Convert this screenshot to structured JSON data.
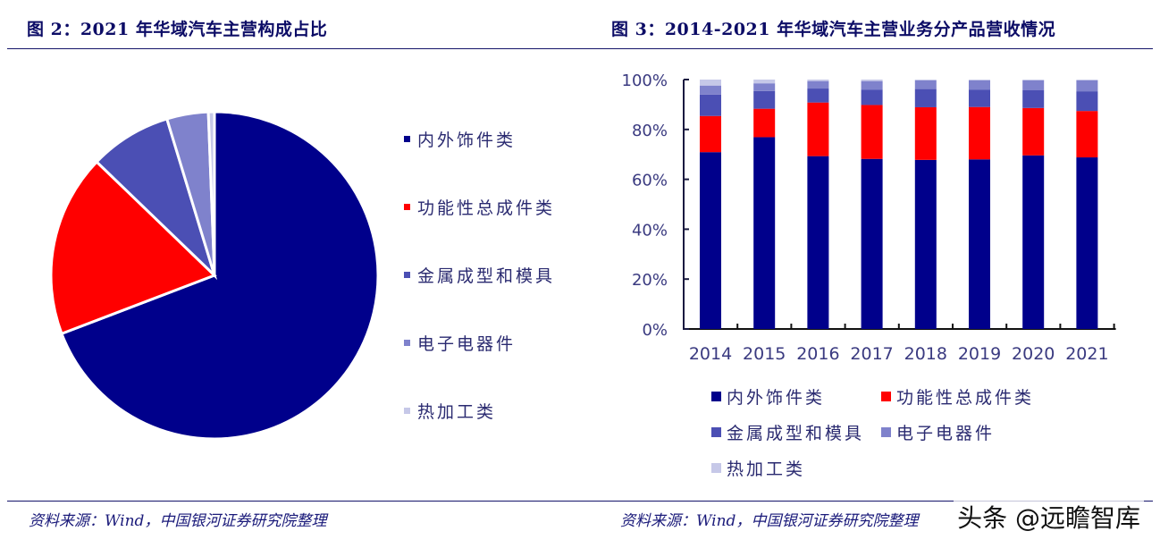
{
  "left_figure": {
    "title": "图 2：2021 年华域汽车主营构成占比",
    "source": "资料来源：Wind，中国银河证券研究院整理"
  },
  "right_figure": {
    "title": "图 3：2014-2021 年华域汽车主营业务分产品营收情况",
    "source": "资料来源：Wind，中国银河证券研究院整理"
  },
  "watermark": "头条 @远瞻智库",
  "colors": {
    "interior_exterior": "#00008b",
    "functional_assembly": "#ff0000",
    "metal_forming": "#4b4fb4",
    "electronics": "#7f82cc",
    "hot_processing": "#c6c8e8",
    "title": "#0c0c66",
    "axis_text": "#3a3a80"
  },
  "chart_data": [
    {
      "type": "pie",
      "title": "2021 年华域汽车主营构成占比",
      "labels": [
        "内外饰件类",
        "功能性总成件类",
        "金属成型和模具",
        "电子电器件",
        "热加工类"
      ],
      "values": [
        69.2,
        18.0,
        8.1,
        4.1,
        0.6
      ],
      "unit": "%",
      "legend_position": "right",
      "start_angle": "12 o'clock, clockwise"
    },
    {
      "type": "bar",
      "stacked": true,
      "percent": true,
      "title": "2014-2021 年华域汽车主营业务分产品营收情况",
      "categories": [
        "2014",
        "2015",
        "2016",
        "2017",
        "2018",
        "2019",
        "2020",
        "2021"
      ],
      "series": [
        {
          "name": "内外饰件类",
          "values": [
            70.9,
            76.9,
            69.3,
            68.2,
            67.8,
            68.0,
            69.6,
            68.8
          ]
        },
        {
          "name": "功能性总成件类",
          "values": [
            14.5,
            11.4,
            21.5,
            21.6,
            21.1,
            21.0,
            19.0,
            18.6
          ]
        },
        {
          "name": "金属成型和模具",
          "values": [
            8.6,
            7.1,
            5.6,
            6.2,
            7.3,
            7.0,
            7.1,
            7.9
          ]
        },
        {
          "name": "电子电器件",
          "values": [
            3.6,
            3.1,
            3.0,
            3.4,
            3.5,
            3.7,
            4.0,
            4.4
          ]
        },
        {
          "name": "热加工类",
          "values": [
            2.4,
            1.5,
            0.6,
            0.6,
            0.3,
            0.3,
            0.3,
            0.3
          ]
        }
      ],
      "xlabel": "",
      "ylabel": "",
      "ylim": [
        0,
        100
      ],
      "yticks": [
        "0%",
        "20%",
        "40%",
        "60%",
        "80%",
        "100%"
      ],
      "grid": false,
      "legend_position": "bottom"
    }
  ]
}
